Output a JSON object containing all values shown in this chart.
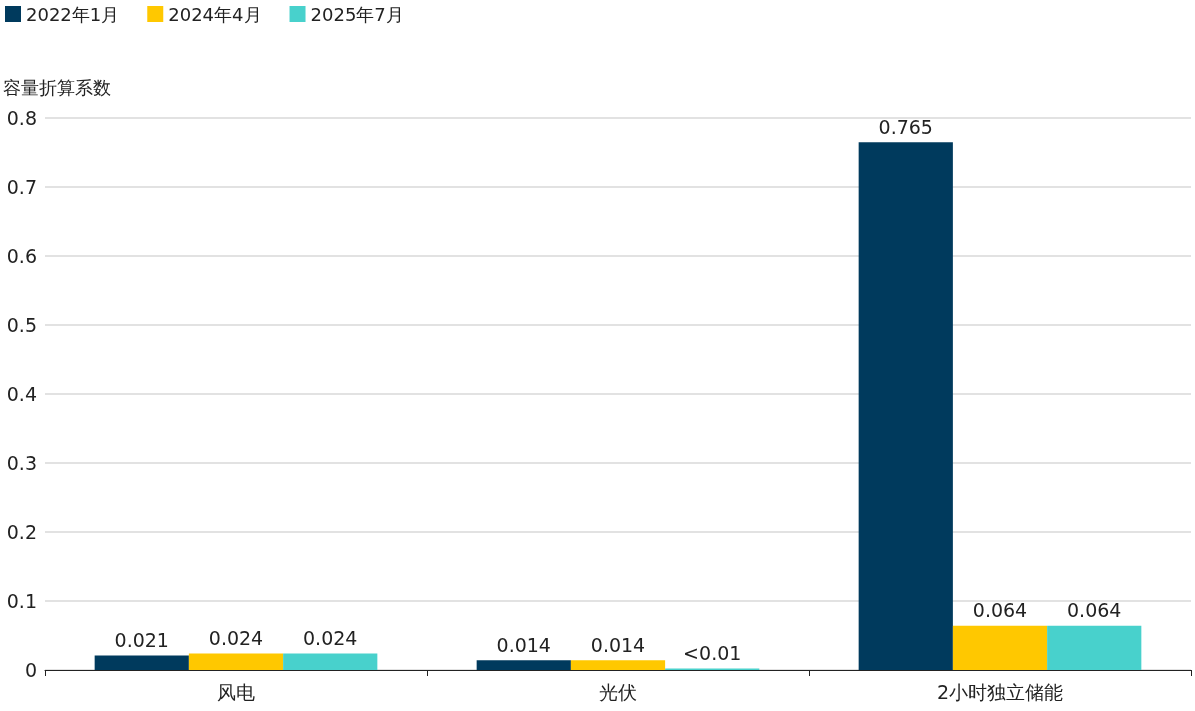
{
  "chart_data": {
    "type": "bar",
    "ylabel": "容量折算系数",
    "categories": [
      "风电",
      "光伏",
      "2小时独立储能"
    ],
    "series": [
      {
        "name": "2022年1月",
        "color": "#003a5d",
        "values": [
          0.021,
          0.014,
          0.765
        ],
        "value_labels": [
          "0.021",
          "0.014",
          "0.765"
        ]
      },
      {
        "name": "2024年4月",
        "color": "#ffc800",
        "values": [
          0.024,
          0.014,
          0.064
        ],
        "value_labels": [
          "0.024",
          "0.014",
          "0.064"
        ]
      },
      {
        "name": "2025年7月",
        "color": "#48d1cc",
        "values": [
          0.024,
          0.002,
          0.064
        ],
        "value_labels": [
          "0.024",
          "<0.01",
          "0.064"
        ]
      }
    ],
    "ylim": [
      0,
      0.8
    ],
    "yticks": [
      0,
      0.1,
      0.2,
      0.3,
      0.4,
      0.5,
      0.6,
      0.7,
      0.8
    ],
    "grid": "y",
    "legend": "top left"
  }
}
